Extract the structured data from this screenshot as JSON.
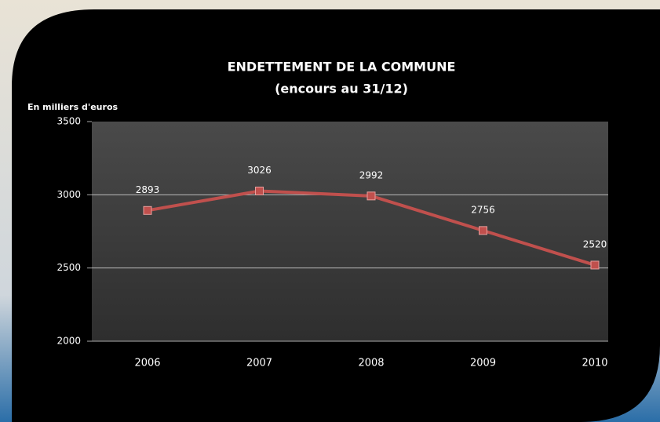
{
  "chart_data": {
    "type": "line",
    "title": "ENDETTEMENT DE LA COMMUNE",
    "subtitle": "(encours au 31/12)",
    "y_label": "En milliers d'euros",
    "categories": [
      "2006",
      "2007",
      "2008",
      "2009",
      "2010"
    ],
    "series": [
      {
        "name": "Endettement",
        "color": "#c0504d",
        "values": [
          2893,
          3026,
          2992,
          2756,
          2520
        ]
      }
    ],
    "ylim": [
      2000,
      3500
    ],
    "yticks": [
      2000,
      2500,
      3000,
      3500
    ],
    "grid": true
  }
}
